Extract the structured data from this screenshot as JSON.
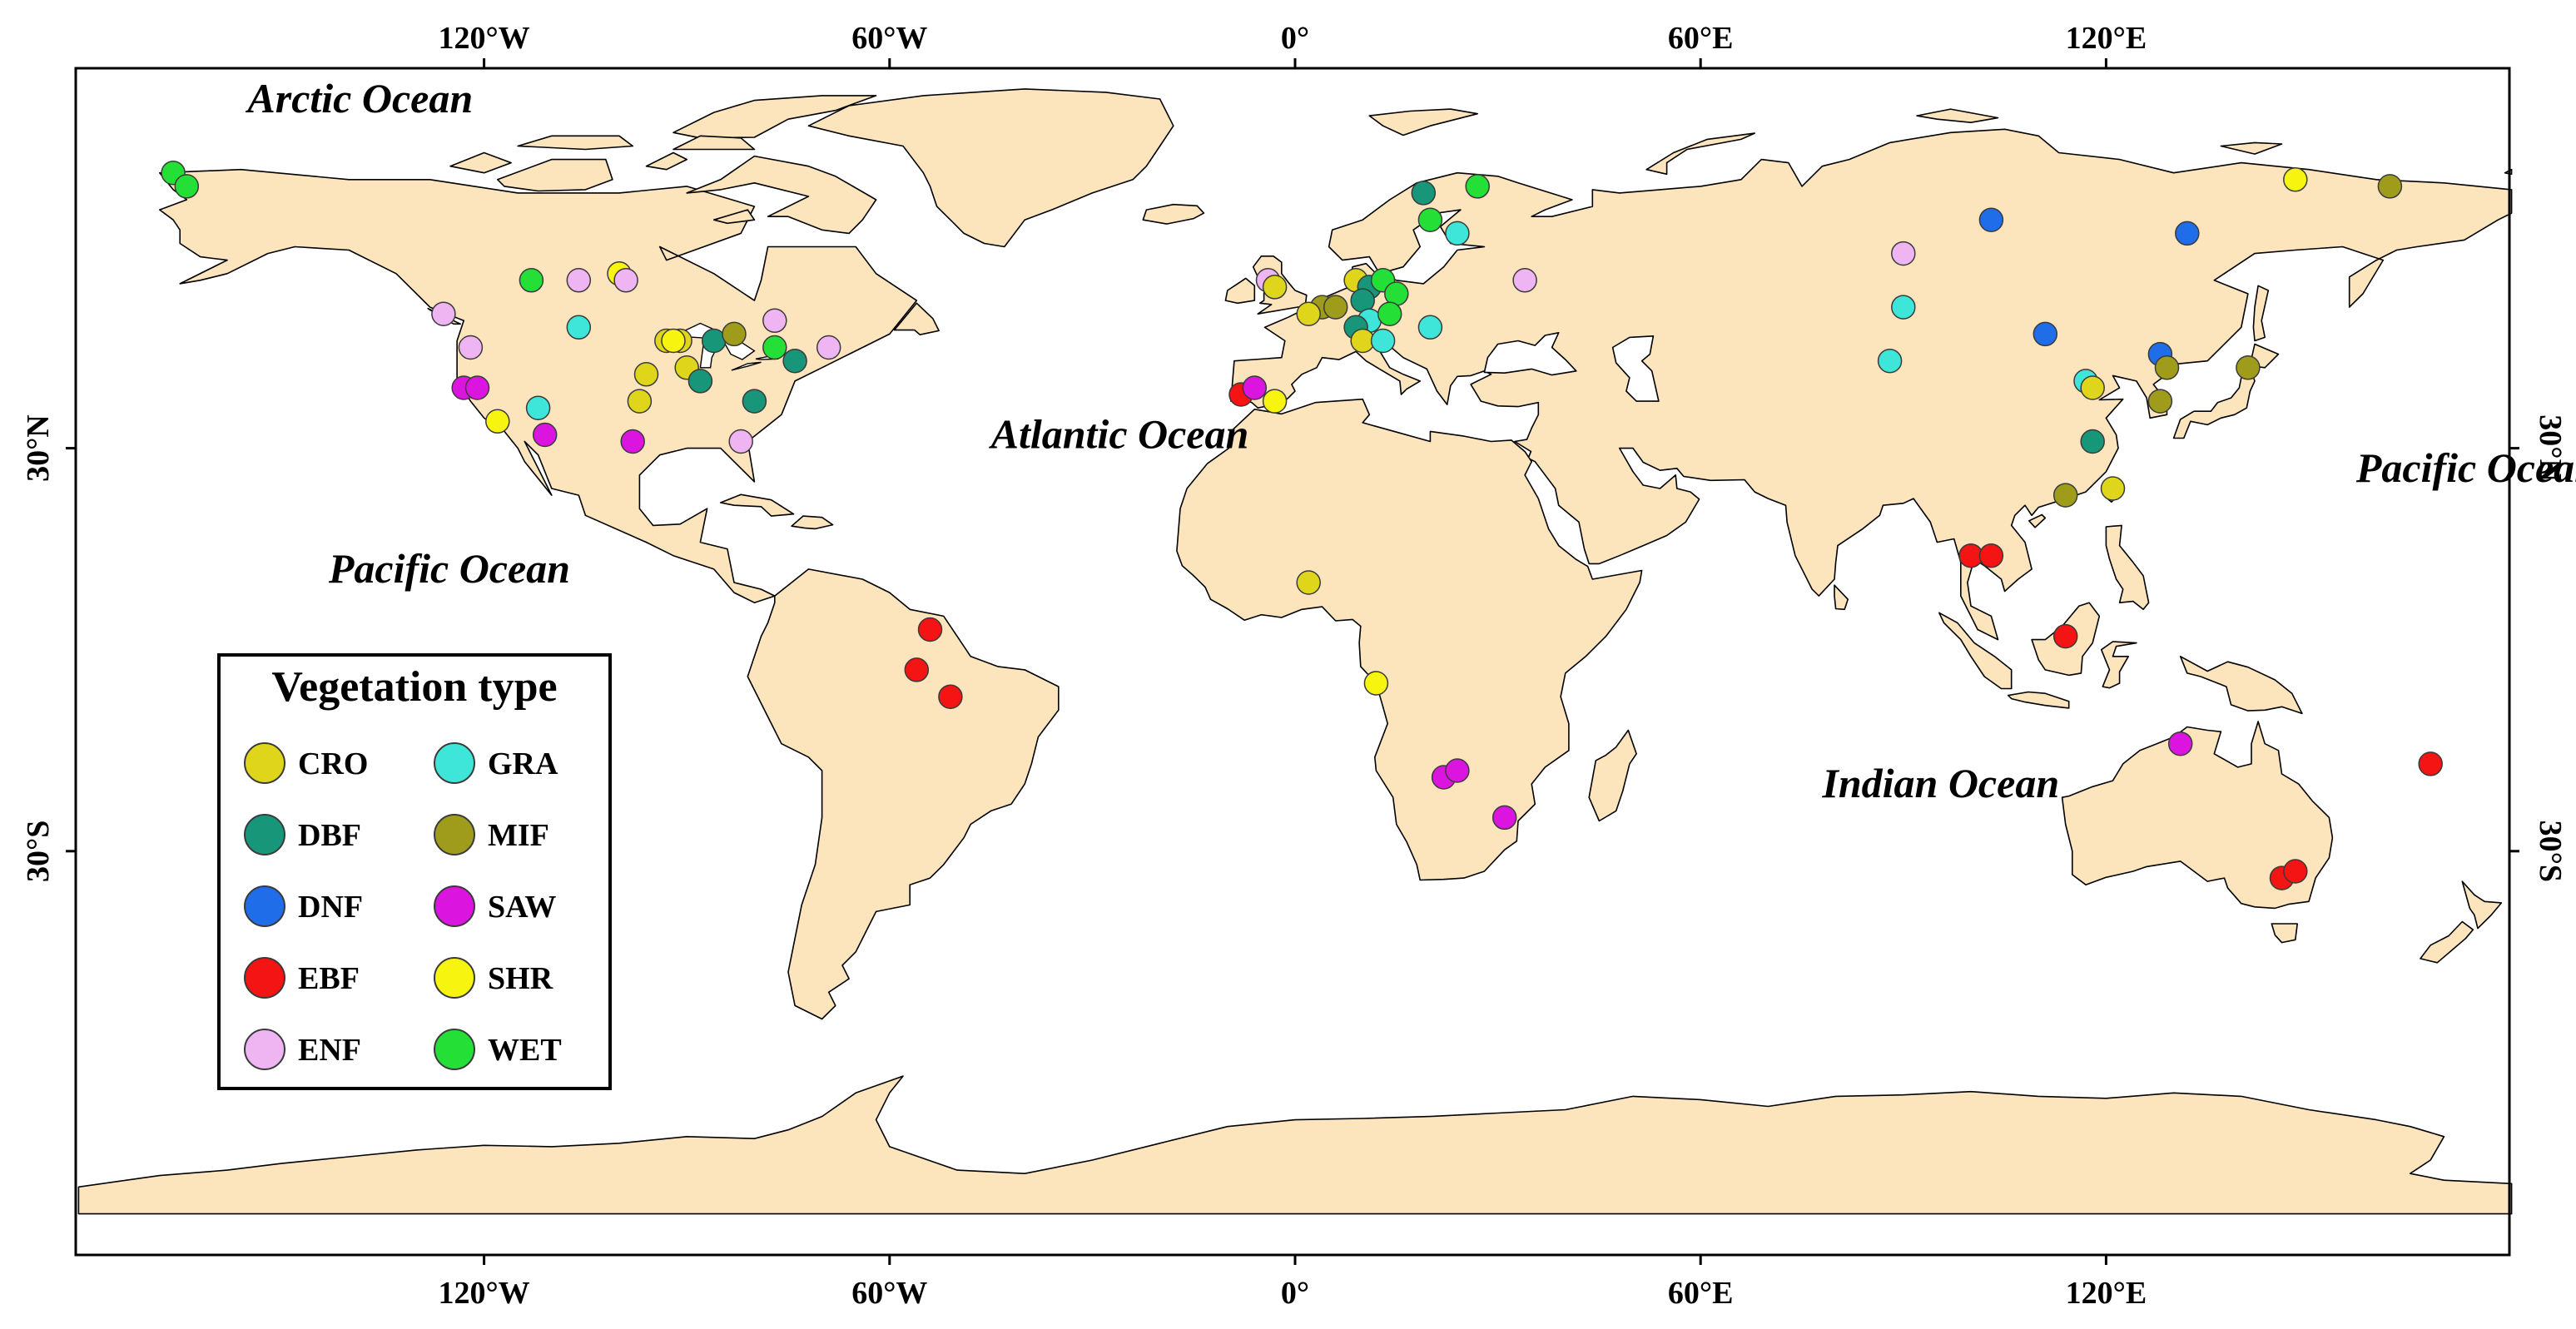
{
  "map": {
    "land_color": "#FCE4BC",
    "ocean_color": "#FFFFFF",
    "frame_color": "#000000",
    "lon_ticks": [
      {
        "lon": -120,
        "label": "120°W"
      },
      {
        "lon": -60,
        "label": "60°W"
      },
      {
        "lon": 0,
        "label": "0°"
      },
      {
        "lon": 60,
        "label": "60°E"
      },
      {
        "lon": 120,
        "label": "120°E"
      }
    ],
    "lat_ticks": [
      {
        "lat": 30,
        "label": "30°N"
      },
      {
        "lat": -30,
        "label": "30°S"
      }
    ],
    "ocean_labels": [
      {
        "name": "Arctic Ocean",
        "lon": -155,
        "lat": 80
      },
      {
        "name": "Atlantic Ocean",
        "lon": -45,
        "lat": 30
      },
      {
        "name": "Pacific Ocean",
        "lon": -143,
        "lat": 10
      },
      {
        "name": "Pacific Ocean",
        "lon": 157,
        "lat": 25
      },
      {
        "name": "Indian Ocean",
        "lon": 78,
        "lat": -22
      }
    ],
    "legend": {
      "title": "Vegetation type",
      "items": [
        {
          "code": "CRO",
          "color": "#DFD61C"
        },
        {
          "code": "DBF",
          "color": "#18967A"
        },
        {
          "code": "DNF",
          "color": "#1F6DE9"
        },
        {
          "code": "EBF",
          "color": "#F41414"
        },
        {
          "code": "ENF",
          "color": "#EFB4F2"
        },
        {
          "code": "GRA",
          "color": "#3EE6DA"
        },
        {
          "code": "MIF",
          "color": "#A09C1B"
        },
        {
          "code": "SAW",
          "color": "#DC14E0"
        },
        {
          "code": "SHR",
          "color": "#F7F40F"
        },
        {
          "code": "WET",
          "color": "#24E036"
        }
      ]
    }
  },
  "sites": [
    {
      "type": "WET",
      "lon": -166,
      "lat": 71
    },
    {
      "type": "WET",
      "lon": -164,
      "lat": 69
    },
    {
      "type": "WET",
      "lon": -113,
      "lat": 55
    },
    {
      "type": "ENF",
      "lon": -106,
      "lat": 55
    },
    {
      "type": "SHR",
      "lon": -100,
      "lat": 56
    },
    {
      "type": "ENF",
      "lon": -99,
      "lat": 55
    },
    {
      "type": "ENF",
      "lon": -126,
      "lat": 50
    },
    {
      "type": "ENF",
      "lon": -122,
      "lat": 45
    },
    {
      "type": "SAW",
      "lon": -123,
      "lat": 39
    },
    {
      "type": "SAW",
      "lon": -121,
      "lat": 39
    },
    {
      "type": "GRA",
      "lon": -106,
      "lat": 48
    },
    {
      "type": "GRA",
      "lon": -112,
      "lat": 36
    },
    {
      "type": "SHR",
      "lon": -118,
      "lat": 34
    },
    {
      "type": "SAW",
      "lon": -111,
      "lat": 32
    },
    {
      "type": "SAW",
      "lon": -98,
      "lat": 31
    },
    {
      "type": "CRO",
      "lon": -97,
      "lat": 37
    },
    {
      "type": "CRO",
      "lon": -96,
      "lat": 41
    },
    {
      "type": "CRO",
      "lon": -93,
      "lat": 46
    },
    {
      "type": "CRO",
      "lon": -91,
      "lat": 46
    },
    {
      "type": "SHR",
      "lon": -92,
      "lat": 46
    },
    {
      "type": "CRO",
      "lon": -90,
      "lat": 42
    },
    {
      "type": "DBF",
      "lon": -88,
      "lat": 40
    },
    {
      "type": "DBF",
      "lon": -86,
      "lat": 46
    },
    {
      "type": "MIF",
      "lon": -83,
      "lat": 47
    },
    {
      "type": "ENF",
      "lon": -77,
      "lat": 49
    },
    {
      "type": "WET",
      "lon": -77,
      "lat": 45
    },
    {
      "type": "DBF",
      "lon": -74,
      "lat": 43
    },
    {
      "type": "ENF",
      "lon": -69,
      "lat": 45
    },
    {
      "type": "DBF",
      "lon": -80,
      "lat": 37
    },
    {
      "type": "ENF",
      "lon": -82,
      "lat": 31
    },
    {
      "type": "EBF",
      "lon": -54,
      "lat": 3
    },
    {
      "type": "EBF",
      "lon": -56,
      "lat": -3
    },
    {
      "type": "EBF",
      "lon": -51,
      "lat": -7
    },
    {
      "type": "EBF",
      "lon": -8,
      "lat": 38
    },
    {
      "type": "SAW",
      "lon": -6,
      "lat": 39
    },
    {
      "type": "SHR",
      "lon": -3,
      "lat": 37
    },
    {
      "type": "ENF",
      "lon": -4,
      "lat": 55
    },
    {
      "type": "CRO",
      "lon": -3,
      "lat": 54
    },
    {
      "type": "MIF",
      "lon": 4,
      "lat": 51
    },
    {
      "type": "CRO",
      "lon": 2,
      "lat": 50
    },
    {
      "type": "MIF",
      "lon": 6,
      "lat": 51
    },
    {
      "type": "CRO",
      "lon": 9,
      "lat": 55
    },
    {
      "type": "DBF",
      "lon": 11,
      "lat": 54
    },
    {
      "type": "WET",
      "lon": 13,
      "lat": 55
    },
    {
      "type": "DBF",
      "lon": 10,
      "lat": 52
    },
    {
      "type": "GRA",
      "lon": 11,
      "lat": 49
    },
    {
      "type": "DBF",
      "lon": 9,
      "lat": 48
    },
    {
      "type": "CRO",
      "lon": 10,
      "lat": 46
    },
    {
      "type": "GRA",
      "lon": 13,
      "lat": 46
    },
    {
      "type": "WET",
      "lon": 15,
      "lat": 53
    },
    {
      "type": "WET",
      "lon": 14,
      "lat": 50
    },
    {
      "type": "GRA",
      "lon": 20,
      "lat": 48
    },
    {
      "type": "DBF",
      "lon": 19,
      "lat": 68
    },
    {
      "type": "WET",
      "lon": 20,
      "lat": 64
    },
    {
      "type": "WET",
      "lon": 27,
      "lat": 69
    },
    {
      "type": "GRA",
      "lon": 24,
      "lat": 62
    },
    {
      "type": "ENF",
      "lon": 34,
      "lat": 55
    },
    {
      "type": "CRO",
      "lon": 2,
      "lat": 10
    },
    {
      "type": "SHR",
      "lon": 12,
      "lat": -5
    },
    {
      "type": "SAW",
      "lon": 22,
      "lat": -19
    },
    {
      "type": "SAW",
      "lon": 24,
      "lat": -18
    },
    {
      "type": "SAW",
      "lon": 31,
      "lat": -25
    },
    {
      "type": "ENF",
      "lon": 90,
      "lat": 59
    },
    {
      "type": "GRA",
      "lon": 90,
      "lat": 51
    },
    {
      "type": "GRA",
      "lon": 88,
      "lat": 43
    },
    {
      "type": "DNF",
      "lon": 103,
      "lat": 64
    },
    {
      "type": "DNF",
      "lon": 111,
      "lat": 47
    },
    {
      "type": "DNF",
      "lon": 132,
      "lat": 62
    },
    {
      "type": "DNF",
      "lon": 128,
      "lat": 44
    },
    {
      "type": "GRA",
      "lon": 117,
      "lat": 40
    },
    {
      "type": "CRO",
      "lon": 118,
      "lat": 39
    },
    {
      "type": "MIF",
      "lon": 129,
      "lat": 42
    },
    {
      "type": "MIF",
      "lon": 128,
      "lat": 37
    },
    {
      "type": "MIF",
      "lon": 141,
      "lat": 42
    },
    {
      "type": "DBF",
      "lon": 118,
      "lat": 31
    },
    {
      "type": "MIF",
      "lon": 114,
      "lat": 23
    },
    {
      "type": "CRO",
      "lon": 121,
      "lat": 24
    },
    {
      "type": "SHR",
      "lon": 148,
      "lat": 70
    },
    {
      "type": "MIF",
      "lon": 162,
      "lat": 69
    },
    {
      "type": "EBF",
      "lon": 100,
      "lat": 14
    },
    {
      "type": "EBF",
      "lon": 103,
      "lat": 14
    },
    {
      "type": "EBF",
      "lon": 114,
      "lat": 2
    },
    {
      "type": "SAW",
      "lon": 131,
      "lat": -14
    },
    {
      "type": "EBF",
      "lon": 146,
      "lat": -34
    },
    {
      "type": "EBF",
      "lon": 148,
      "lat": -33
    },
    {
      "type": "EBF",
      "lon": 168,
      "lat": -17
    }
  ]
}
